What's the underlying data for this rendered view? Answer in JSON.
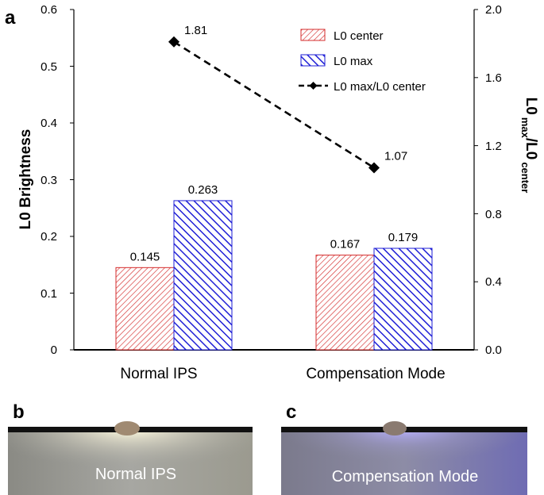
{
  "panels": {
    "a": {
      "label": "a"
    },
    "b": {
      "label": "b",
      "caption": "Normal IPS"
    },
    "c": {
      "label": "c",
      "caption": "Compensation Mode"
    }
  },
  "colors": {
    "center": "#d42b2b",
    "max": "#1f1fd6",
    "ratio_line": "#000000"
  },
  "chart_data": {
    "type": "bar",
    "categories": [
      "Normal IPS",
      "Compensation Mode"
    ],
    "series": [
      {
        "name": "L0 center",
        "values": [
          0.145,
          0.167
        ],
        "labels": [
          "0.145",
          "0.167"
        ],
        "axis": "left",
        "pattern": "hatch-red"
      },
      {
        "name": "L0 max",
        "values": [
          0.263,
          0.179
        ],
        "labels": [
          "0.263",
          "0.179"
        ],
        "axis": "left",
        "pattern": "hatch-blue"
      }
    ],
    "line_series": {
      "name": "L0 max/L0 center",
      "values": [
        1.81,
        1.07
      ],
      "labels": [
        "1.81",
        "1.07"
      ],
      "axis": "right",
      "style": "dashed",
      "marker": "diamond"
    },
    "ylabel_left": "L0 Brightness",
    "ylabel_right": {
      "main1": "L0",
      "sub1": "max",
      "main2": "/L0",
      "sub2": "center"
    },
    "ylim_left": [
      0,
      0.6
    ],
    "yticks_left": [
      "0",
      "0.1",
      "0.2",
      "0.3",
      "0.4",
      "0.5",
      "0.6"
    ],
    "ylim_right": [
      0,
      2.0
    ],
    "yticks_right": [
      "0.0",
      "0.4",
      "0.8",
      "1.2",
      "1.6",
      "2.0"
    ],
    "legend_position": "top-right",
    "grid": false
  }
}
